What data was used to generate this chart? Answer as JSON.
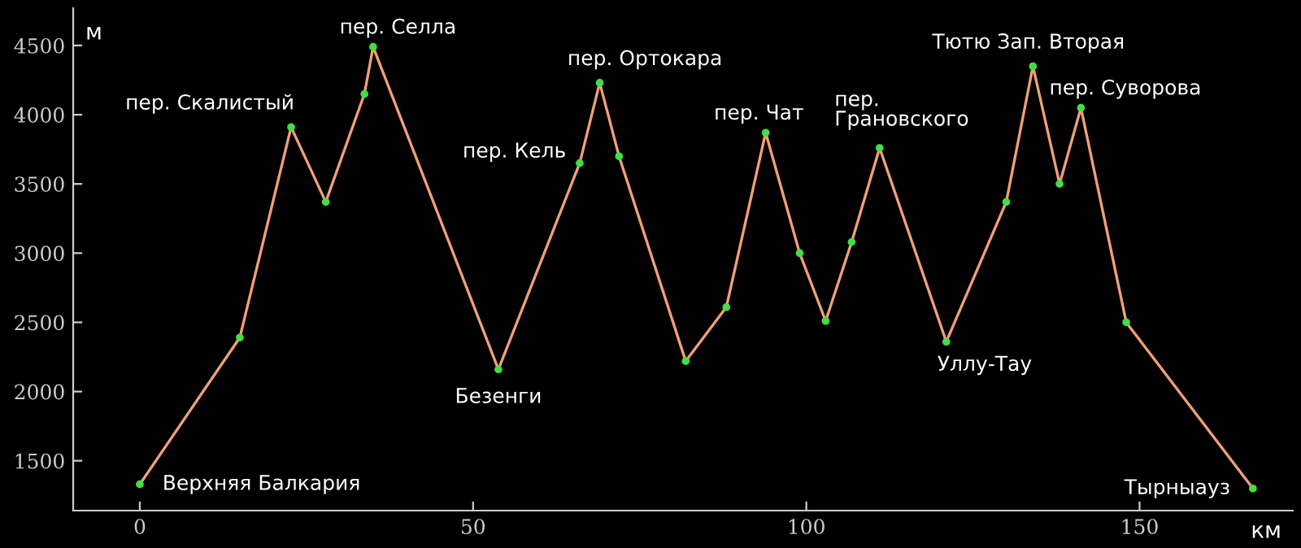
{
  "chart_data": {
    "type": "line",
    "xlabel": "км",
    "ylabel": "м",
    "x": [
      0,
      15,
      22.7,
      27.9,
      33.7,
      35,
      53.8,
      66,
      69,
      71.9,
      81.9,
      88,
      93.9,
      99,
      102.9,
      106.8,
      111,
      121,
      130,
      134,
      138,
      141.2,
      148,
      167
    ],
    "series": [
      {
        "color": "#f0a078",
        "colors": [
          "#44dd44",
          "#44dd44",
          "#44dd44",
          "#44dd44",
          "#44dd44",
          "#44dd44",
          "#44dd44",
          "#44dd44",
          "#44dd44",
          "#44dd44",
          "#44dd44",
          "#44dd44",
          "#44dd44",
          "#44dd44",
          "#44dd44",
          "#44dd44",
          "#44dd44",
          "#44dd44",
          "#44dd44",
          "#44dd44",
          "#44dd44",
          "#44dd44",
          "#44dd44",
          "#44dd44"
        ],
        "values": [
          1330,
          2390,
          3910,
          3370,
          4150,
          4490,
          2160,
          3650,
          4230,
          3700,
          2220,
          2610,
          3870,
          3000,
          2510,
          3080,
          3760,
          2360,
          3370,
          4350,
          3500,
          4050,
          2500,
          1300
        ]
      }
    ],
    "marker": "circle",
    "xlim": [
      -10,
      173
    ],
    "ylim": [
      1140,
      4770
    ],
    "xticks": [
      0,
      50,
      100,
      150
    ],
    "yticks": [
      1500,
      2000,
      2500,
      3000,
      3500,
      4000,
      4500
    ],
    "grid": false,
    "legend": false,
    "annotations": [
      {
        "text": "Верхняя Балкария",
        "x": 0,
        "y": 1330
      },
      {
        "text": "пер. Скалистый",
        "x": 22.7,
        "y": 3910
      },
      {
        "text": "пер. Селла",
        "x": 35,
        "y": 4490
      },
      {
        "text": "Безенги",
        "x": 53.8,
        "y": 2160
      },
      {
        "text": "пер. Кель",
        "x": 66,
        "y": 3650
      },
      {
        "text": "пер. Ортокара",
        "x": 69,
        "y": 4230
      },
      {
        "text": "пер. Чат",
        "x": 93.9,
        "y": 3870
      },
      {
        "text": "пер.\nГрановского",
        "x": 111,
        "y": 3760
      },
      {
        "text": "Уллу-Тау",
        "x": 121,
        "y": 2360
      },
      {
        "text": "Тютю Зап. Вторая",
        "x": 134,
        "y": 4350
      },
      {
        "text": "пер. Суворова",
        "x": 141.2,
        "y": 4050
      },
      {
        "text": "Тырныауз",
        "x": 167,
        "y": 1300
      }
    ]
  }
}
